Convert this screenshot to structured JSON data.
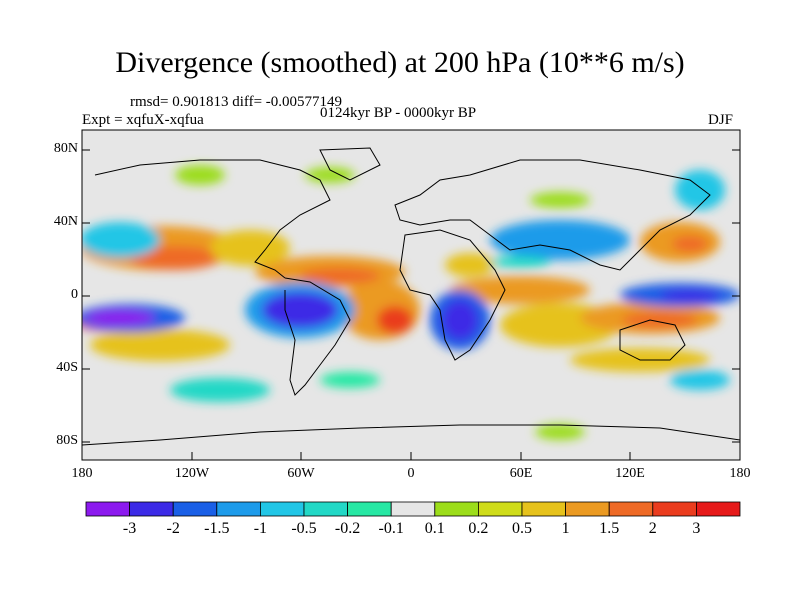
{
  "header": {
    "title": "Divergence (smoothed) at 200 hPa (10**6 m/s)",
    "stats": "rmsd= 0.901813 diff= -0.00577149",
    "experiment": "Expt = xqfuX-xqfua",
    "period": "0124kyr BP - 0000kyr BP",
    "season": "DJF"
  },
  "axes": {
    "lat_labels": [
      "80N",
      "40N",
      "0",
      "40S",
      "80S"
    ],
    "lon_labels": [
      "180",
      "120W",
      "60W",
      "0",
      "60E",
      "120E",
      "180"
    ]
  },
  "colorbar": {
    "labels": [
      "-3",
      "-2",
      "-1.5",
      "-1",
      "-0.5",
      "-0.2",
      "-0.1",
      "0.1",
      "0.2",
      "0.5",
      "1",
      "1.5",
      "2",
      "3"
    ],
    "colors": [
      "#8c1aee",
      "#3c2ae6",
      "#1a5fe6",
      "#1d9bea",
      "#22c6e6",
      "#22d8c6",
      "#27e8a4",
      "#e6e6e6",
      "#9cdd1a",
      "#cfdc1a",
      "#e6c21c",
      "#eb9a22",
      "#ee6a26",
      "#ea3c1e",
      "#e61a1a"
    ]
  }
}
